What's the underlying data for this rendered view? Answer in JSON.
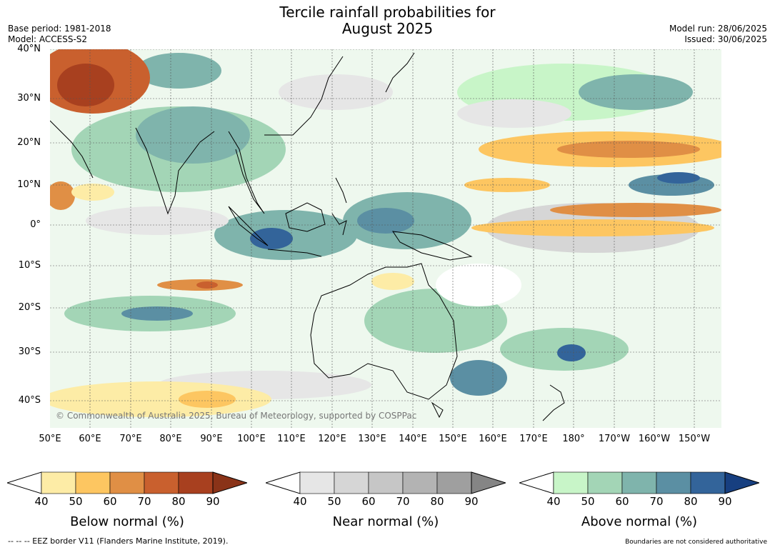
{
  "header": {
    "title_line1": "Tercile rainfall probabilities for",
    "title_line2": "August 2025",
    "base_period": "Base period: 1981-2018",
    "model": "Model: ACCESS-S2",
    "model_run": "Model run: 28/06/2025",
    "issued": "Issued: 30/06/2025"
  },
  "map": {
    "copyright": "© Commonwealth of Australia 2025, Bureau of Meteorology, supported by COSPPac",
    "lat_labels": [
      "40°N",
      "30°N",
      "20°N",
      "10°N",
      "0°",
      "10°S",
      "20°S",
      "30°S",
      "40°S"
    ],
    "lon_labels": [
      "50°E",
      "60°E",
      "70°E",
      "80°E",
      "90°E",
      "100°E",
      "110°E",
      "120°E",
      "130°E",
      "140°E",
      "150°E",
      "160°E",
      "170°E",
      "180°",
      "170°W",
      "160°W",
      "150°W"
    ]
  },
  "legends": [
    {
      "label": "Below normal (%)",
      "colors": [
        "#fdeca6",
        "#fdc661",
        "#e08f45",
        "#c9602e",
        "#a8401f",
        "#8a3318"
      ],
      "ticks": [
        "40",
        "50",
        "60",
        "70",
        "80",
        "90"
      ]
    },
    {
      "label": "Near normal (%)",
      "colors": [
        "#e6e6e6",
        "#d6d6d6",
        "#c6c6c6",
        "#b3b3b3",
        "#9f9f9f",
        "#858585"
      ],
      "ticks": [
        "40",
        "50",
        "60",
        "70",
        "80",
        "90"
      ]
    },
    {
      "label": "Above normal (%)",
      "colors": [
        "#c8f5c8",
        "#a3d5b6",
        "#7fb4ac",
        "#5b8fa3",
        "#33649a",
        "#173f80"
      ],
      "ticks": [
        "40",
        "50",
        "60",
        "70",
        "80",
        "90"
      ]
    }
  ],
  "footer": {
    "eez_note": "--  --  -- EEZ border V11 (Flanders Marine Institute, 2019).",
    "boundaries_note": "Boundaries are not considered authoritative"
  }
}
